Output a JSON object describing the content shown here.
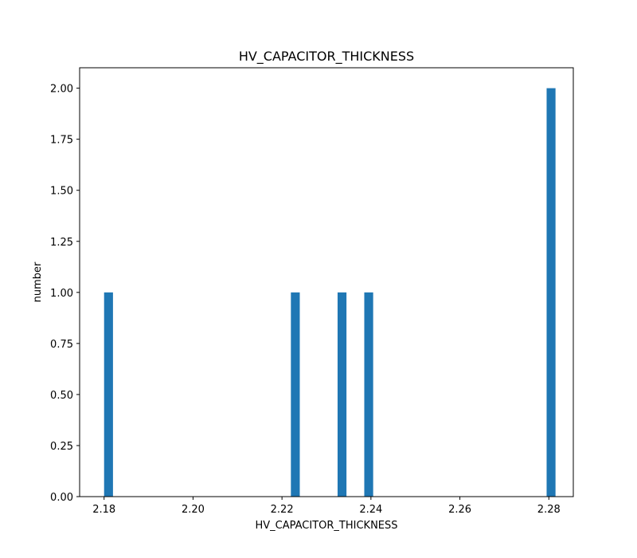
{
  "chart_data": {
    "type": "bar",
    "title": "HV_CAPACITOR_THICKNESS",
    "xlabel": "HV_CAPACITOR_THICKNESS",
    "ylabel": "number",
    "xlim": [
      2.1745,
      2.2855
    ],
    "ylim": [
      0,
      2.1
    ],
    "bin_width": 0.002,
    "bars": [
      {
        "x": 2.181,
        "value": 1
      },
      {
        "x": 2.223,
        "value": 1
      },
      {
        "x": 2.2335,
        "value": 1
      },
      {
        "x": 2.2395,
        "value": 1
      },
      {
        "x": 2.2805,
        "value": 2
      }
    ],
    "xticks": [
      "2.18",
      "2.20",
      "2.22",
      "2.24",
      "2.26",
      "2.28"
    ],
    "yticks": [
      "0.00",
      "0.25",
      "0.50",
      "0.75",
      "1.00",
      "1.25",
      "1.50",
      "1.75",
      "2.00"
    ],
    "grid": false,
    "bar_color": "#1f77b4"
  }
}
